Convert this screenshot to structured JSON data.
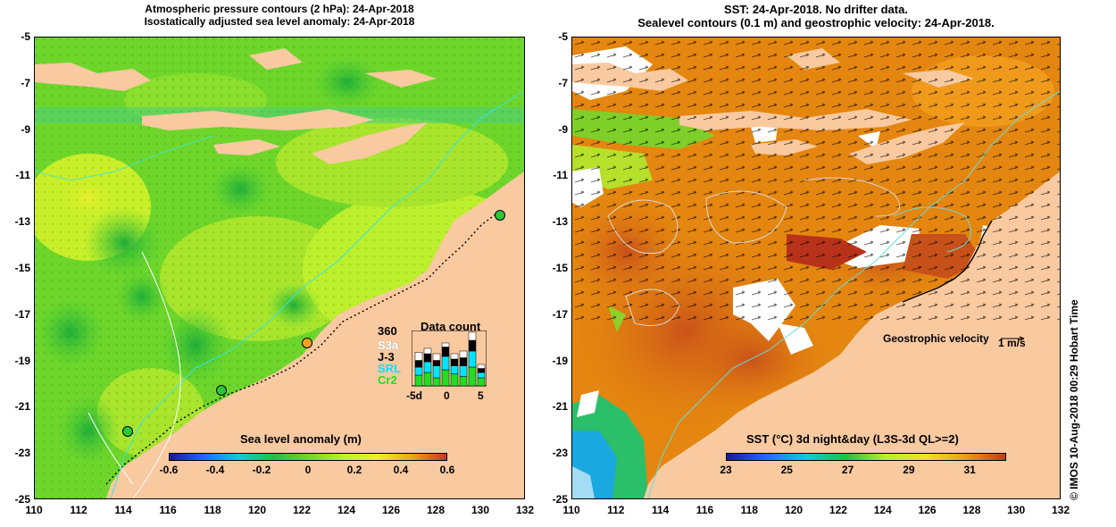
{
  "left_panel": {
    "title_line1": "Atmospheric pressure contours (2 hPa): 24-Apr-2018",
    "title_line2": "Isostatically adjusted sea level anomaly: 24-Apr-2018",
    "colorbar": {
      "title": "Sea level anomaly (m)",
      "ticks": [
        "-0.6",
        "-0.4",
        "-0.2",
        "0",
        "0.2",
        "0.4",
        "0.6"
      ]
    },
    "data_count": {
      "title": "Data count",
      "max_label": "360",
      "satellites": [
        {
          "name": "S3a",
          "color": "#ffffff"
        },
        {
          "name": "J-3",
          "color": "#000000"
        },
        {
          "name": "SRL",
          "color": "#00e5ff"
        },
        {
          "name": "Cr2",
          "color": "#22dd22"
        }
      ],
      "x_ticks": [
        "-5d",
        "0",
        "5"
      ]
    }
  },
  "right_panel": {
    "title_line1": "SST: 24-Apr-2018. No drifter data.",
    "title_line2": "Sealevel contours (0.1 m) and geostrophic velocity: 24-Apr-2018.",
    "legend_vector_label": "Geostrophic velocity",
    "legend_vector_scale": "1 m/s",
    "colorbar": {
      "title": "SST (°C) 3d night&day (L3S-3d QL>=2)",
      "ticks": [
        "23",
        "25",
        "27",
        "29",
        "31"
      ]
    },
    "credit": "©  IMOS 10-Aug-2018 00:29 Hobart Time"
  },
  "axes": {
    "y_ticks": [
      "-5",
      "-7",
      "-9",
      "-11",
      "-13",
      "-15",
      "-17",
      "-19",
      "-21",
      "-23",
      "-25"
    ],
    "x_ticks": [
      "110",
      "112",
      "114",
      "116",
      "118",
      "120",
      "122",
      "124",
      "126",
      "128",
      "130",
      "132"
    ]
  },
  "colors": {
    "land": "#f9c9a0",
    "ocean_green": "#6ed62a",
    "sst_orange": "#e07a12",
    "sla_colormap": [
      "#1a1a8a",
      "#1d6cff",
      "#19c6e0",
      "#22c13c",
      "#b6f22e",
      "#f0f02c",
      "#f3a21c",
      "#c43a12"
    ],
    "sst_colormap": [
      "#1a1a8a",
      "#1d6cff",
      "#19c6e0",
      "#22c13c",
      "#b6f22e",
      "#f0e02c",
      "#f39a1c",
      "#c43a12"
    ]
  }
}
